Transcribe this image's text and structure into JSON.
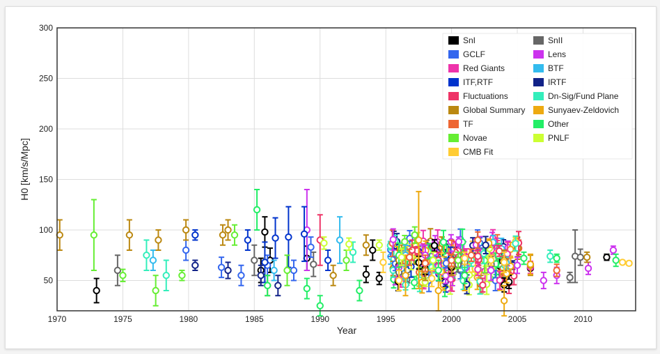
{
  "chart_data": {
    "type": "scatter",
    "xlabel": "Year",
    "ylabel": "H0 [km/s/Mpc]",
    "xlim": [
      1970,
      2014
    ],
    "ylim": [
      20,
      300
    ],
    "x_ticks": [
      "1970",
      "1975",
      "1980",
      "1985",
      "1990",
      "1995",
      "2000",
      "2005",
      "2010"
    ],
    "y_ticks": [
      "50",
      "100",
      "150",
      "200",
      "250",
      "300"
    ],
    "grid": true,
    "legend_position": "top-right",
    "series": [
      {
        "name": "SnI",
        "color": "#000000",
        "points": [
          [
            1973,
            40,
            12
          ],
          [
            1985.5,
            60,
            12
          ],
          [
            1985.8,
            98,
            15
          ],
          [
            1986.2,
            70,
            12
          ],
          [
            1989,
            72,
            12
          ],
          [
            1993.5,
            56,
            8
          ],
          [
            1994,
            80,
            10
          ],
          [
            1994.5,
            52,
            6
          ],
          [
            1996,
            65,
            8
          ],
          [
            1998,
            62,
            6
          ],
          [
            2000,
            63,
            6
          ],
          [
            2006,
            62,
            6
          ],
          [
            2011.8,
            73,
            3
          ]
        ]
      },
      {
        "name": "SnII",
        "color": "#666666",
        "points": [
          [
            1974.6,
            60,
            15
          ],
          [
            1985,
            70,
            15
          ],
          [
            1989.5,
            66,
            12
          ],
          [
            1996,
            58,
            8
          ],
          [
            2001,
            68,
            10
          ],
          [
            2009,
            53,
            5
          ],
          [
            2009.4,
            74,
            26
          ],
          [
            2009.8,
            73,
            8
          ]
        ]
      },
      {
        "name": "GCLF",
        "color": "#3366ee",
        "points": [
          [
            1979.8,
            80,
            10
          ],
          [
            1982.5,
            63,
            10
          ],
          [
            1984,
            55,
            10
          ],
          [
            1986,
            65,
            10
          ],
          [
            1988,
            60,
            10
          ],
          [
            1989.3,
            83,
            10
          ],
          [
            1999,
            68,
            6
          ]
        ]
      },
      {
        "name": "Lens",
        "color": "#cc33ee",
        "points": [
          [
            1989,
            100,
            40
          ],
          [
            1996,
            63,
            10
          ],
          [
            1998,
            75,
            10
          ],
          [
            2000,
            67,
            12
          ],
          [
            2003,
            60,
            10
          ],
          [
            2005,
            65,
            8
          ],
          [
            2007,
            50,
            8
          ],
          [
            2008,
            55,
            8
          ],
          [
            2010.4,
            62,
            6
          ],
          [
            2012.3,
            80,
            4
          ]
        ]
      },
      {
        "name": "Red Giants",
        "color": "#ee33aa",
        "points": [
          [
            1996,
            72,
            8
          ],
          [
            1999,
            64,
            8
          ],
          [
            2002,
            61,
            6
          ],
          [
            2006,
            63,
            6
          ]
        ]
      },
      {
        "name": "BTF",
        "color": "#33bbee",
        "points": [
          [
            1977.3,
            70,
            10
          ],
          [
            1986.5,
            60,
            10
          ],
          [
            1991.5,
            90,
            23
          ],
          [
            1996.5,
            75,
            10
          ],
          [
            2001,
            63,
            8
          ]
        ]
      },
      {
        "name": "ITF,RTF",
        "color": "#0033cc",
        "points": [
          [
            1980.5,
            95,
            5
          ],
          [
            1984.5,
            90,
            10
          ],
          [
            1985.8,
            68,
            20
          ],
          [
            1986.6,
            92,
            20
          ],
          [
            1987.6,
            93,
            30
          ],
          [
            1988.8,
            96,
            27
          ],
          [
            1990.6,
            70,
            10
          ]
        ]
      },
      {
        "name": "IRTF",
        "color": "#112288",
        "points": [
          [
            1980.5,
            65,
            5
          ],
          [
            1983,
            60,
            8
          ],
          [
            1985.5,
            55,
            10
          ],
          [
            1986.8,
            45,
            10
          ]
        ]
      },
      {
        "name": "Fluctuations",
        "color": "#ee3366",
        "points": [
          [
            1990,
            90,
            25
          ],
          [
            1997,
            80,
            10
          ],
          [
            1999,
            70,
            8
          ],
          [
            2002,
            74,
            6
          ]
        ]
      },
      {
        "name": "Dn-Sig/Fund Plane",
        "color": "#33eebb",
        "points": [
          [
            1976.8,
            75,
            15
          ],
          [
            1978.3,
            55,
            15
          ],
          [
            1992.5,
            78,
            10
          ],
          [
            1996,
            70,
            10
          ],
          [
            1998.5,
            63,
            10
          ],
          [
            2001.5,
            70,
            6
          ],
          [
            2007.5,
            74,
            6
          ]
        ]
      },
      {
        "name": "Global Summary",
        "color": "#bb8811",
        "points": [
          [
            1970.2,
            95,
            15
          ],
          [
            1975.5,
            95,
            15
          ],
          [
            1979.8,
            100,
            10
          ],
          [
            1977.7,
            90,
            10
          ],
          [
            1983,
            100,
            10
          ],
          [
            1982.6,
            95,
            10
          ],
          [
            1986,
            45,
            10
          ],
          [
            1991,
            55,
            10
          ],
          [
            1993.5,
            85,
            10
          ],
          [
            1996,
            70,
            10
          ],
          [
            1998,
            60,
            10
          ],
          [
            2000,
            65,
            10
          ],
          [
            2004,
            70,
            10
          ],
          [
            2006,
            65,
            10
          ],
          [
            2010.3,
            73,
            5
          ]
        ]
      },
      {
        "name": "Sunyaev-Zeldovich",
        "color": "#eeaa11",
        "points": [
          [
            1996.5,
            55,
            20
          ],
          [
            1997.5,
            90,
            48
          ],
          [
            1999,
            40,
            20
          ],
          [
            2001,
            55,
            15
          ],
          [
            2004,
            30,
            15
          ],
          [
            2006,
            66,
            10
          ]
        ]
      },
      {
        "name": "TF",
        "color": "#ee6633",
        "points": [
          [
            1996.8,
            73,
            8
          ],
          [
            1998,
            67,
            8
          ],
          [
            2000,
            70,
            6
          ],
          [
            2001.5,
            75,
            6
          ],
          [
            2002,
            90,
            8
          ],
          [
            2008,
            60,
            6
          ]
        ]
      },
      {
        "name": "Other",
        "color": "#22ee66",
        "points": [
          [
            1985.2,
            120,
            20
          ],
          [
            1986,
            45,
            10
          ],
          [
            1989,
            42,
            10
          ],
          [
            1990,
            25,
            10
          ],
          [
            1993,
            40,
            10
          ],
          [
            1996,
            75,
            12
          ],
          [
            1999,
            60,
            10
          ],
          [
            2001,
            55,
            8
          ],
          [
            2005.5,
            72,
            6
          ],
          [
            2008,
            72,
            4
          ],
          [
            2012.5,
            70,
            6
          ]
        ]
      },
      {
        "name": "Novae",
        "color": "#66ee33",
        "points": [
          [
            1972.8,
            95,
            35
          ],
          [
            1975,
            55,
            6
          ],
          [
            1977.5,
            40,
            15
          ],
          [
            1979.5,
            55,
            5
          ],
          [
            1983.5,
            95,
            10
          ],
          [
            1987.5,
            60,
            15
          ],
          [
            1992,
            70,
            10
          ],
          [
            1997.2,
            95,
            8
          ],
          [
            2000.5,
            70,
            8
          ]
        ]
      },
      {
        "name": "PNLF",
        "color": "#ccff33",
        "points": [
          [
            1990.3,
            87,
            6
          ],
          [
            1992.2,
            86,
            6
          ],
          [
            1994.5,
            85,
            5
          ],
          [
            1996.2,
            73,
            8
          ],
          [
            1998.6,
            70,
            8
          ]
        ]
      },
      {
        "name": "CMB Fit",
        "color": "#ffcc33",
        "points": [
          [
            1994.8,
            68,
            10
          ],
          [
            1996,
            50,
            10
          ],
          [
            1998.5,
            52,
            8
          ],
          [
            2001,
            72,
            6
          ],
          [
            2003,
            70,
            5
          ],
          [
            2004,
            68,
            10
          ],
          [
            2013,
            68,
            2
          ],
          [
            2013.5,
            67,
            2
          ]
        ]
      }
    ],
    "noise_cloud": {
      "x_range": [
        1995.3,
        2005.2
      ],
      "y_range": [
        45,
        92
      ],
      "count": 210
    }
  }
}
